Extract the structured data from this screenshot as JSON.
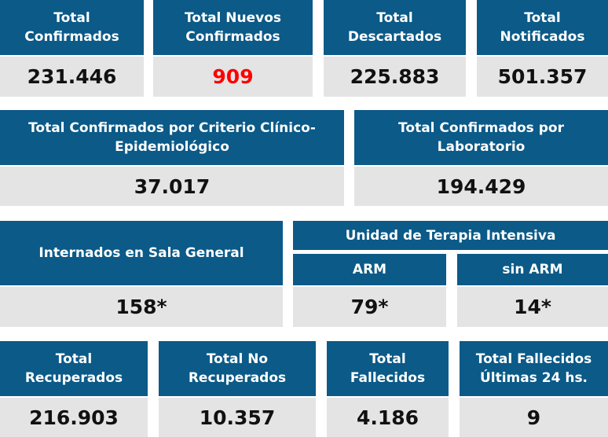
{
  "row1": [
    {
      "label": "Total\nConfirmados",
      "value": "231.446"
    },
    {
      "label": "Total Nuevos\nConfirmados",
      "value": "909"
    },
    {
      "label": "Total\nDescartados",
      "value": "225.883"
    },
    {
      "label": "Total\nNotificados",
      "value": "501.357"
    }
  ],
  "row2": [
    {
      "label": "Total Confirmados por Criterio Clínico-\nEpidemiológico",
      "value": "37.017"
    },
    {
      "label": "Total Confirmados por\nLaboratorio",
      "value": "194.429"
    }
  ],
  "row3": {
    "sala_general": {
      "label": "Internados en Sala General",
      "value": "158*"
    },
    "uti_title": "Unidad de Terapia Intensiva",
    "arm": {
      "label": "ARM",
      "value": "79*"
    },
    "sin_arm": {
      "label": "sin ARM",
      "value": "14*"
    }
  },
  "row4": [
    {
      "label": "Total\nRecuperados",
      "value": "216.903"
    },
    {
      "label": "Total No\nRecuperados",
      "value": "10.357"
    },
    {
      "label": "Total\nFallecidos",
      "value": "4.186"
    },
    {
      "label": "Total Fallecidos\nÚltimas 24 hs.",
      "value": "9"
    }
  ],
  "colors": {
    "header": "#0b5a88",
    "value_bg": "#e4e4e4",
    "highlight": "#ff0000"
  }
}
